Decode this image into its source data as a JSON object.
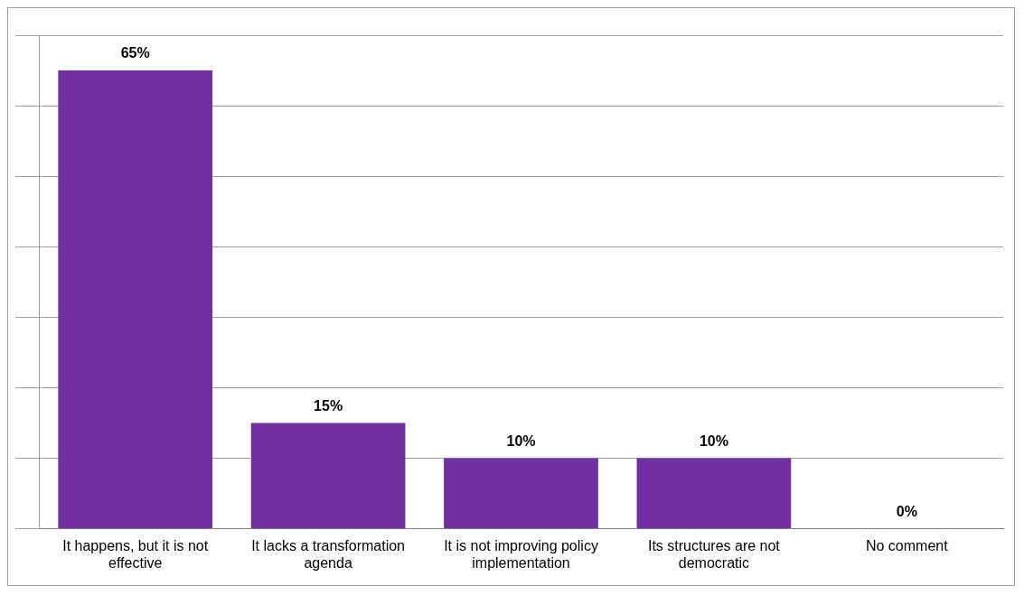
{
  "chart_data": {
    "type": "bar",
    "categories": [
      "It happens, but it is not effective",
      "It lacks a transformation agenda",
      "It is not improving policy implementation",
      "Its structures are not democratic",
      "No comment"
    ],
    "values": [
      65,
      15,
      10,
      10,
      0
    ],
    "value_labels": [
      "65%",
      "15%",
      "10%",
      "10%",
      "0%"
    ],
    "color": "#7030a0",
    "ylim": [
      0,
      70
    ],
    "yticks": [
      {
        "value": 0,
        "label": null
      },
      {
        "value": 10,
        "label": null
      },
      {
        "value": 20,
        "label": null
      },
      {
        "value": 30,
        "label": null
      },
      {
        "value": 40,
        "label": null
      },
      {
        "value": 50,
        "label": null
      },
      {
        "value": 60,
        "label": null
      },
      {
        "value": 70,
        "label": null
      }
    ],
    "grid": "y",
    "tick_labels": "x"
  }
}
